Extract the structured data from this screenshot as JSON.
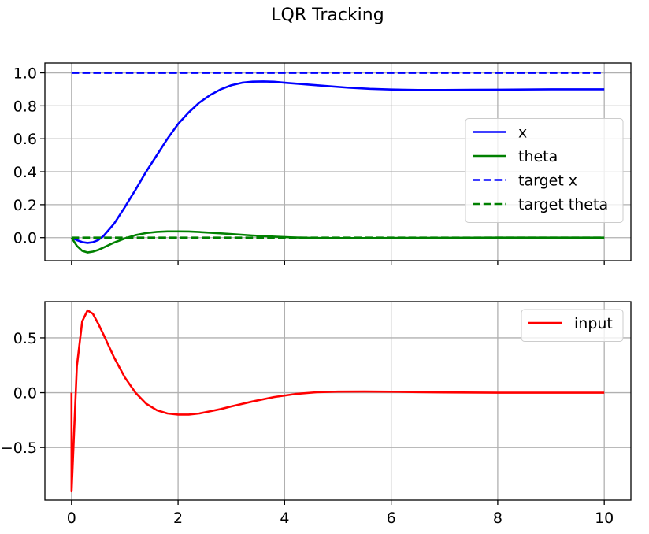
{
  "chart_data": {
    "title": "LQR Tracking",
    "subplots": [
      {
        "type": "line",
        "xlim": [
          -0.5,
          10.5
        ],
        "ylim": [
          -0.14,
          1.06
        ],
        "xticks": [
          0,
          2,
          4,
          6,
          8,
          10
        ],
        "show_xtick_labels": false,
        "yticks": [
          0.0,
          0.2,
          0.4,
          0.6,
          0.8,
          1.0
        ],
        "ytick_labels": [
          "0.0",
          "0.2",
          "0.4",
          "0.6",
          "0.8",
          "1.0"
        ],
        "grid": true,
        "legend": "center-right",
        "series": [
          {
            "name": "x",
            "color": "#0000ff",
            "dash": "solid",
            "x": [
              0,
              0.1,
              0.2,
              0.3,
              0.4,
              0.5,
              0.6,
              0.8,
              1.0,
              1.2,
              1.4,
              1.6,
              1.8,
              2.0,
              2.2,
              2.4,
              2.6,
              2.8,
              3.0,
              3.2,
              3.4,
              3.6,
              3.8,
              4.0,
              4.4,
              4.8,
              5.2,
              5.6,
              6.0,
              6.5,
              7.0,
              7.5,
              8.0,
              9.0,
              10.0
            ],
            "y": [
              0.0,
              -0.015,
              -0.027,
              -0.032,
              -0.028,
              -0.015,
              0.01,
              0.085,
              0.185,
              0.29,
              0.4,
              0.5,
              0.6,
              0.69,
              0.76,
              0.82,
              0.865,
              0.9,
              0.925,
              0.94,
              0.947,
              0.948,
              0.946,
              0.94,
              0.93,
              0.92,
              0.91,
              0.903,
              0.899,
              0.896,
              0.896,
              0.897,
              0.898,
              0.9,
              0.9
            ]
          },
          {
            "name": "theta",
            "color": "#008000",
            "dash": "solid",
            "x": [
              0,
              0.1,
              0.2,
              0.3,
              0.4,
              0.5,
              0.6,
              0.8,
              1.0,
              1.2,
              1.4,
              1.6,
              1.8,
              2.0,
              2.2,
              2.4,
              2.6,
              3.0,
              3.4,
              3.8,
              4.2,
              4.6,
              5.0,
              5.5,
              6.0,
              7.0,
              8.0,
              9.0,
              10.0
            ],
            "y": [
              0.0,
              -0.05,
              -0.08,
              -0.09,
              -0.085,
              -0.075,
              -0.06,
              -0.03,
              -0.005,
              0.015,
              0.028,
              0.035,
              0.038,
              0.038,
              0.037,
              0.034,
              0.03,
              0.022,
              0.013,
              0.006,
              0.001,
              -0.002,
              -0.003,
              -0.003,
              -0.002,
              -0.001,
              0.0,
              0.0,
              0.0
            ]
          },
          {
            "name": "target x",
            "color": "#0000ff",
            "dash": "dashed",
            "x": [
              0,
              10
            ],
            "y": [
              1.0,
              1.0
            ]
          },
          {
            "name": "target theta",
            "color": "#008000",
            "dash": "dashed",
            "x": [
              0,
              10
            ],
            "y": [
              0.0,
              0.0
            ]
          }
        ]
      },
      {
        "type": "line",
        "xlim": [
          -0.5,
          10.5
        ],
        "ylim": [
          -0.98,
          0.83
        ],
        "xticks": [
          0,
          2,
          4,
          6,
          8,
          10
        ],
        "xtick_labels": [
          "0",
          "2",
          "4",
          "6",
          "8",
          "10"
        ],
        "show_xtick_labels": true,
        "yticks": [
          -0.5,
          0.0,
          0.5
        ],
        "ytick_labels": [
          "−0.5",
          "0.0",
          "0.5"
        ],
        "grid": true,
        "legend": "upper-right",
        "series": [
          {
            "name": "input",
            "color": "#ff0000",
            "dash": "solid",
            "x": [
              0,
              0.001,
              0.1,
              0.2,
              0.3,
              0.4,
              0.5,
              0.6,
              0.8,
              1.0,
              1.2,
              1.4,
              1.6,
              1.8,
              2.0,
              2.2,
              2.4,
              2.6,
              2.8,
              3.0,
              3.4,
              3.8,
              4.2,
              4.6,
              5.0,
              5.5,
              6.0,
              6.5,
              7.0,
              8.0,
              9.0,
              10.0
            ],
            "y": [
              0.0,
              -0.9,
              0.24,
              0.65,
              0.75,
              0.72,
              0.63,
              0.53,
              0.32,
              0.14,
              0.0,
              -0.1,
              -0.16,
              -0.19,
              -0.2,
              -0.2,
              -0.19,
              -0.17,
              -0.15,
              -0.125,
              -0.08,
              -0.04,
              -0.012,
              0.004,
              0.01,
              0.011,
              0.009,
              0.005,
              0.003,
              0.0,
              0.0,
              0.0
            ]
          }
        ]
      }
    ]
  }
}
